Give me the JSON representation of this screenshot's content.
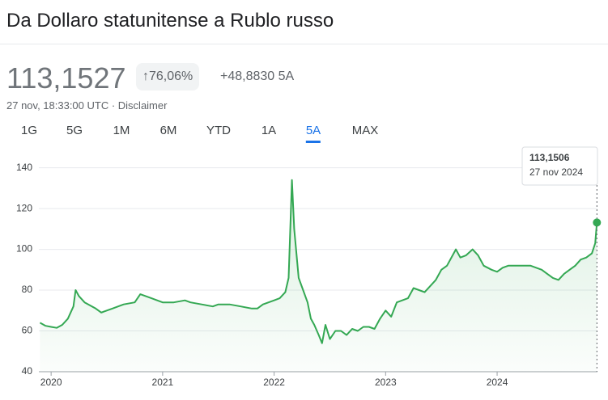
{
  "header": {
    "title": "Da Dollaro statunitense a Rublo russo"
  },
  "quote": {
    "price": "113,1527",
    "change_percent": "↑76,06%",
    "change": "+48,8830 5A",
    "timestamp": "27 nov, 18:33:00 UTC · Disclaimer"
  },
  "tabs": {
    "items": [
      "1G",
      "5G",
      "1M",
      "6M",
      "YTD",
      "1A",
      "5A",
      "MAX"
    ],
    "active": 6
  },
  "chart_data": {
    "type": "line",
    "color": "#34a853",
    "x": [
      2019.9,
      2019.95,
      2020.0,
      2020.05,
      2020.1,
      2020.15,
      2020.2,
      2020.22,
      2020.25,
      2020.3,
      2020.4,
      2020.45,
      2020.55,
      2020.65,
      2020.75,
      2020.8,
      2020.9,
      2021.0,
      2021.1,
      2021.2,
      2021.25,
      2021.35,
      2021.45,
      2021.5,
      2021.6,
      2021.7,
      2021.8,
      2021.85,
      2021.9,
      2021.95,
      2022.0,
      2022.05,
      2022.1,
      2022.13,
      2022.16,
      2022.18,
      2022.22,
      2022.26,
      2022.3,
      2022.33,
      2022.36,
      2022.4,
      2022.43,
      2022.46,
      2022.5,
      2022.55,
      2022.6,
      2022.65,
      2022.7,
      2022.75,
      2022.8,
      2022.85,
      2022.9,
      2022.95,
      2023.0,
      2023.05,
      2023.1,
      2023.2,
      2023.25,
      2023.3,
      2023.35,
      2023.45,
      2023.5,
      2023.55,
      2023.6,
      2023.63,
      2023.67,
      2023.72,
      2023.78,
      2023.83,
      2023.88,
      2023.95,
      2024.0,
      2024.05,
      2024.1,
      2024.2,
      2024.3,
      2024.4,
      2024.45,
      2024.5,
      2024.55,
      2024.6,
      2024.65,
      2024.7,
      2024.75,
      2024.8,
      2024.85,
      2024.88,
      2024.895
    ],
    "values": [
      64,
      62.5,
      62,
      61.5,
      63,
      66,
      72,
      80,
      77,
      74,
      71,
      69,
      71,
      73,
      74,
      78,
      76,
      74,
      74,
      75,
      74,
      73,
      72,
      73,
      73,
      72,
      71,
      71,
      73,
      74,
      75,
      76,
      79,
      86,
      134,
      110,
      86,
      80,
      74,
      66,
      63,
      58,
      54,
      63,
      56,
      60,
      60,
      58,
      61,
      60,
      62,
      62,
      61,
      66,
      70,
      67,
      74,
      76,
      81,
      80,
      79,
      85,
      90,
      92,
      97,
      100,
      96,
      97,
      100,
      97,
      92,
      90,
      89,
      91,
      92,
      92,
      92,
      90,
      88,
      86,
      85,
      88,
      90,
      92,
      95,
      96,
      98,
      103,
      113.15
    ],
    "xlim": [
      2019.89,
      2024.9
    ],
    "ylim": [
      40,
      145
    ],
    "xticks": [
      2020,
      2021,
      2022,
      2023,
      2024
    ],
    "yticks": [
      40,
      60,
      80,
      100,
      120,
      140
    ],
    "grid": true,
    "tooltip": {
      "value": "113,1506",
      "date": "27 nov 2024"
    }
  }
}
